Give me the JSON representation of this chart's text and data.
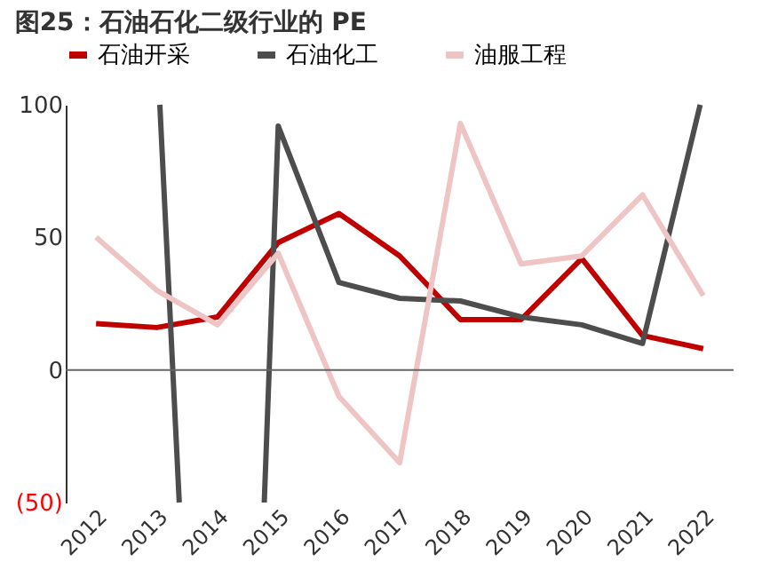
{
  "chart_data": {
    "type": "line",
    "title": "图25：石油石化二级行业的 PE",
    "x": [
      2012,
      2013,
      2014,
      2015,
      2016,
      2017,
      2018,
      2019,
      2020,
      2021,
      2022
    ],
    "series": [
      {
        "name": "石油开采",
        "color": "#c00000",
        "values": [
          17.5,
          16,
          20,
          48,
          59,
          43,
          19,
          19,
          42,
          13,
          8
        ]
      },
      {
        "name": "石油化工",
        "color": "#4d4d4d",
        "x": [
          2013.05,
          2013.37,
          2014.0,
          2014.77,
          2015,
          2016,
          2017,
          2018,
          2019,
          2020,
          2021,
          2021.95
        ],
        "values": [
          100,
          -50,
          null,
          -50,
          92,
          33,
          27,
          26,
          20,
          17,
          10,
          100
        ]
      },
      {
        "name": "油服工程",
        "color": "#eec4c4",
        "values": [
          50,
          30,
          17,
          44,
          -10,
          -35,
          93,
          40,
          43,
          66,
          28
        ]
      }
    ],
    "xlim": [
      2011.5,
      2022.5
    ],
    "xticks": [
      2012,
      2013,
      2014,
      2015,
      2016,
      2017,
      2018,
      2019,
      2020,
      2021,
      2022
    ],
    "ylim": [
      -50,
      100
    ],
    "yticks": [
      {
        "value": -50,
        "label": "(50)"
      },
      0,
      50,
      100
    ],
    "ref_lines": [
      {
        "axis": "y",
        "value": 0,
        "color": "#666666"
      }
    ],
    "grid": false,
    "legend": "top",
    "marker": "none",
    "line_style": "solid"
  }
}
